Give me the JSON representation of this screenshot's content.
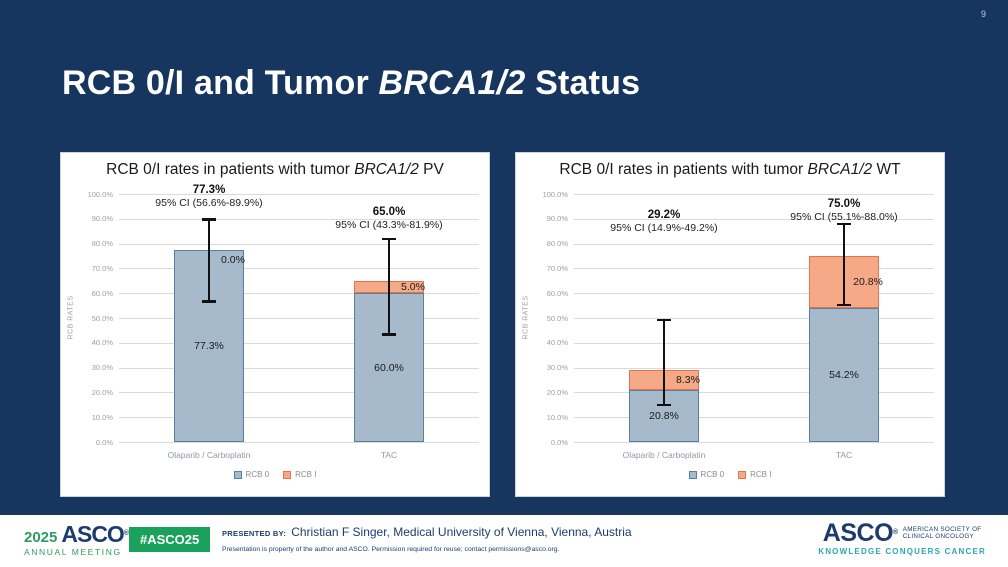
{
  "slide": {
    "page_number": "9",
    "background_color": "#16355f",
    "title": {
      "prefix": "RCB 0/I and Tumor ",
      "italic": "BRCA1/2",
      "suffix": " Status"
    }
  },
  "chart_data": [
    {
      "type": "bar",
      "stacked": true,
      "title": {
        "prefix": "RCB 0/I rates in patients with tumor ",
        "italic": "BRCA1/2",
        "suffix": " PV"
      },
      "ylabel": "RCB RATES",
      "ylim": [
        0,
        100
      ],
      "ytick_step": 10,
      "yticks": [
        "0.0%",
        "10.0%",
        "20.0%",
        "30.0%",
        "40.0%",
        "50.0%",
        "60.0%",
        "70.0%",
        "80.0%",
        "90.0%",
        "100.0%"
      ],
      "grid": true,
      "legend_position": "bottom",
      "categories": [
        "Olaparib / Carboplatin",
        "TAC"
      ],
      "series": [
        {
          "name": "RCB 0",
          "color": "#a6bacc",
          "border_color": "#56809f",
          "values": [
            77.3,
            60.0
          ],
          "labels": [
            "77.3%",
            "60.0%"
          ]
        },
        {
          "name": "RCB I",
          "color": "#f6a987",
          "border_color": "#e0764e",
          "values": [
            0.0,
            5.0
          ],
          "labels": [
            "0.0%",
            "5.0%"
          ]
        }
      ],
      "error_bars": [
        {
          "total_label": "77.3%",
          "ci_label": "95% CI (56.6%-89.9%)",
          "low": 56.6,
          "high": 89.9,
          "label_top_pct": 104
        },
        {
          "total_label": "65.0%",
          "ci_label": "95% CI (43.3%-81.9%)",
          "low": 43.3,
          "high": 81.9,
          "label_top_pct": 95
        }
      ]
    },
    {
      "type": "bar",
      "stacked": true,
      "title": {
        "prefix": "RCB 0/I rates in patients with tumor ",
        "italic": "BRCA1/2",
        "suffix": " WT"
      },
      "ylabel": "RCB RATES",
      "ylim": [
        0,
        100
      ],
      "ytick_step": 10,
      "yticks": [
        "0.0%",
        "10.0%",
        "20.0%",
        "30.0%",
        "40.0%",
        "50.0%",
        "60.0%",
        "70.0%",
        "80.0%",
        "90.0%",
        "100.0%"
      ],
      "grid": true,
      "legend_position": "bottom",
      "categories": [
        "Olaparib / Carboplatin",
        "TAC"
      ],
      "series": [
        {
          "name": "RCB 0",
          "color": "#a6bacc",
          "border_color": "#56809f",
          "values": [
            20.8,
            54.2
          ],
          "labels": [
            "20.8%",
            "54.2%"
          ]
        },
        {
          "name": "RCB I",
          "color": "#f6a987",
          "border_color": "#e0764e",
          "values": [
            8.3,
            20.8
          ],
          "labels": [
            "8.3%",
            "20.8%"
          ]
        }
      ],
      "error_bars": [
        {
          "total_label": "29.2%",
          "ci_label": "95% CI (14.9%-49.2%)",
          "low": 14.9,
          "high": 49.2,
          "label_top_pct": 94
        },
        {
          "total_label": "75.0%",
          "ci_label": "95% CI (55.1%-88.0%)",
          "low": 55.1,
          "high": 88.0,
          "label_top_pct": 98.5
        }
      ]
    }
  ],
  "footer": {
    "meeting_logo": {
      "year": "2025",
      "org": "ASCO",
      "reg": "®",
      "line2": "ANNUAL MEETING"
    },
    "hashtag": "#ASCO25",
    "presented_by_label": "PRESENTED BY:",
    "presenter": "Christian F Singer, Medical University of Vienna, Vienna, Austria",
    "disclaimer": "Presentation is property of the author and ASCO. Permission required for reuse; contact permissions@asco.org.",
    "society_logo": {
      "org": "ASCO",
      "reg": "®",
      "line1": "AMERICAN SOCIETY OF",
      "line2": "CLINICAL ONCOLOGY",
      "tagline": "KNOWLEDGE CONQUERS CANCER"
    },
    "colors": {
      "green": "#1aa15c",
      "navy": "#1c3c6e",
      "teal": "#2aa7b0"
    }
  }
}
